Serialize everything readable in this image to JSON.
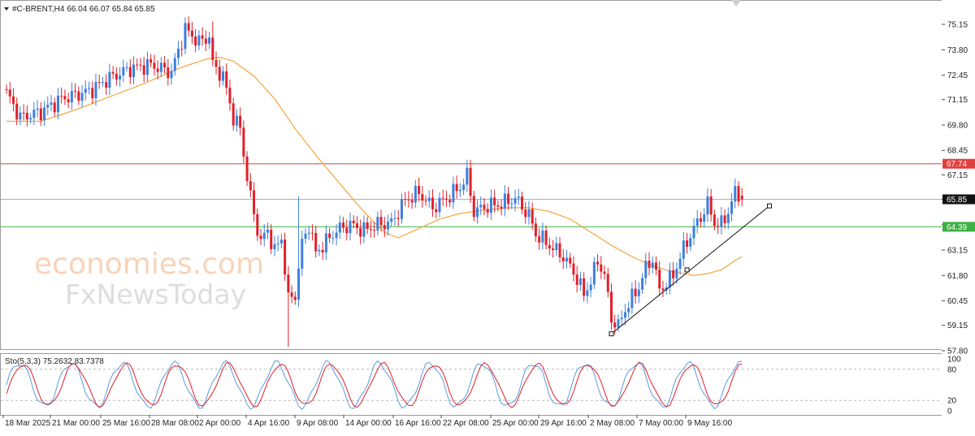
{
  "header": {
    "symbol_line": "#C-BRENT,H4  66.04 66.07 65.84 65.85"
  },
  "indicator": {
    "label": "Sto(5,3,3) 75.2632 83.7378"
  },
  "watermark": {
    "line1": "economies.com",
    "line2": "FxNewsToday"
  },
  "colors": {
    "bull": "#3d7fe0",
    "bear": "#e0202a",
    "ma": "#f5a33a",
    "resistance": "#e04040",
    "support": "#3cb043",
    "price_line": "#b0b0b0",
    "trendline": "#111111",
    "stoch_main": "#5b9be0",
    "stoch_signal": "#e0202a"
  },
  "chart_data": {
    "type": "candlestick",
    "symbol": "#C-BRENT",
    "timeframe": "H4",
    "ohlc_last": {
      "open": 66.04,
      "high": 66.07,
      "low": 65.84,
      "close": 65.85
    },
    "y_ticks": [
      "75.15",
      "73.80",
      "72.45",
      "71.15",
      "69.80",
      "68.45",
      "67.15",
      "65.85",
      "64.50",
      "63.15",
      "61.80",
      "60.45",
      "59.15",
      "57.80"
    ],
    "ylim": [
      57.8,
      75.8
    ],
    "x_ticks": [
      "18 Mar 2025",
      "21 Mar 00:00",
      "25 Mar 16:00",
      "28 Mar 08:00",
      "2 Apr 00:00",
      "4 Apr 16:00",
      "9 Apr 08:00",
      "14 Apr 00:00",
      "16 Apr 16:00",
      "22 Apr 08:00",
      "25 Apr 00:00",
      "29 Apr 16:00",
      "2 May 08:00",
      "7 May 00:00",
      "9 May 16:00"
    ],
    "levels": [
      {
        "value": 67.74,
        "label": "67.74",
        "role": "resistance"
      },
      {
        "value": 64.39,
        "label": "64.39",
        "role": "support"
      },
      {
        "value": 65.85,
        "label": "65.85",
        "role": "current"
      }
    ],
    "price_keypoints": [
      [
        0,
        71.5
      ],
      [
        4,
        70.2
      ],
      [
        10,
        70.5
      ],
      [
        16,
        71.2
      ],
      [
        24,
        71.6
      ],
      [
        30,
        72.3
      ],
      [
        36,
        72.8
      ],
      [
        42,
        73.0
      ],
      [
        48,
        72.6
      ],
      [
        52,
        74.9
      ],
      [
        56,
        74.2
      ],
      [
        59,
        74.5
      ],
      [
        60,
        73.0
      ],
      [
        63,
        72.4
      ],
      [
        66,
        70.2
      ],
      [
        68,
        69.6
      ],
      [
        70,
        67.0
      ],
      [
        72,
        65.0
      ],
      [
        74,
        63.6
      ],
      [
        76,
        64.2
      ],
      [
        78,
        63.1
      ],
      [
        80,
        63.8
      ],
      [
        82,
        60.5
      ],
      [
        84,
        60.8
      ],
      [
        86,
        63.5
      ],
      [
        88,
        64.5
      ],
      [
        90,
        63.0
      ],
      [
        92,
        63.4
      ],
      [
        96,
        64.2
      ],
      [
        100,
        64.5
      ],
      [
        104,
        64.2
      ],
      [
        108,
        64.5
      ],
      [
        112,
        64.6
      ],
      [
        116,
        65.8
      ],
      [
        120,
        66.2
      ],
      [
        124,
        65.4
      ],
      [
        128,
        65.9
      ],
      [
        132,
        66.5
      ],
      [
        134,
        67.1
      ],
      [
        136,
        65.2
      ],
      [
        140,
        65.5
      ],
      [
        144,
        65.6
      ],
      [
        148,
        65.9
      ],
      [
        152,
        65.0
      ],
      [
        154,
        64.0
      ],
      [
        158,
        63.4
      ],
      [
        162,
        62.8
      ],
      [
        165,
        62.0
      ],
      [
        168,
        60.8
      ],
      [
        170,
        61.5
      ],
      [
        172,
        62.6
      ],
      [
        174,
        61.8
      ],
      [
        176,
        59.5
      ],
      [
        178,
        59.1
      ],
      [
        180,
        60.0
      ],
      [
        184,
        61.2
      ],
      [
        186,
        62.2
      ],
      [
        188,
        62.7
      ],
      [
        190,
        61.0
      ],
      [
        194,
        61.8
      ],
      [
        196,
        62.8
      ],
      [
        198,
        63.6
      ],
      [
        200,
        64.3
      ],
      [
        202,
        64.9
      ],
      [
        204,
        65.6
      ],
      [
        206,
        64.6
      ],
      [
        208,
        64.5
      ],
      [
        210,
        65.2
      ],
      [
        212,
        66.2
      ],
      [
        214,
        65.85
      ]
    ],
    "ma_keypoints": [
      [
        0,
        70.0
      ],
      [
        10,
        70.0
      ],
      [
        20,
        70.6
      ],
      [
        30,
        71.3
      ],
      [
        40,
        72.0
      ],
      [
        50,
        72.8
      ],
      [
        58,
        73.3
      ],
      [
        62,
        73.4
      ],
      [
        66,
        73.2
      ],
      [
        72,
        72.4
      ],
      [
        78,
        71.2
      ],
      [
        84,
        69.6
      ],
      [
        90,
        68.2
      ],
      [
        96,
        66.9
      ],
      [
        102,
        65.6
      ],
      [
        106,
        64.8
      ],
      [
        110,
        64.1
      ],
      [
        114,
        63.8
      ],
      [
        120,
        64.3
      ],
      [
        126,
        64.8
      ],
      [
        132,
        65.1
      ],
      [
        140,
        65.3
      ],
      [
        146,
        65.4
      ],
      [
        152,
        65.4
      ],
      [
        158,
        65.2
      ],
      [
        164,
        64.8
      ],
      [
        170,
        64.1
      ],
      [
        176,
        63.4
      ],
      [
        182,
        62.8
      ],
      [
        188,
        62.3
      ],
      [
        194,
        62.0
      ],
      [
        200,
        61.8
      ],
      [
        204,
        61.9
      ],
      [
        208,
        62.1
      ],
      [
        212,
        62.6
      ],
      [
        214,
        62.8
      ]
    ],
    "trendline": {
      "start": [
        176,
        58.7
      ],
      "end": [
        222,
        65.5
      ],
      "mid": [
        198,
        62.1
      ]
    },
    "stochastic": {
      "name": "Sto(5,3,3)",
      "main": 75.2632,
      "signal": 83.7378,
      "levels": [
        80,
        20
      ],
      "scale": [
        "100",
        "80",
        "20",
        "0"
      ]
    }
  }
}
